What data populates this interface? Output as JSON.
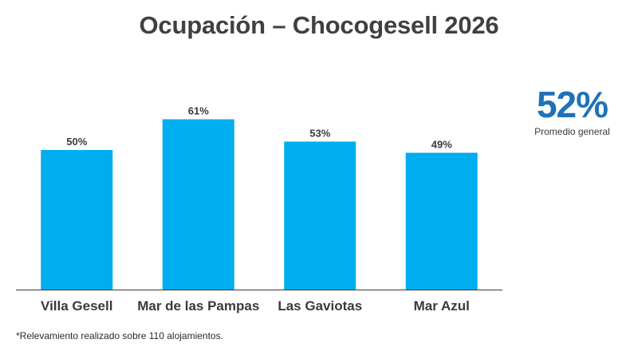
{
  "title": "Ocupación – Chocogesell 2026",
  "kpi": {
    "value": "52%",
    "label": "Promedio general"
  },
  "footnote": "*Relevamiento realizado sobre 110 alojamientos.",
  "colors": {
    "bar": "#00adef",
    "kpi": "#1f72b8",
    "axis": "#3a3a3a"
  },
  "chart_data": {
    "type": "bar",
    "categories": [
      "Villa Gesell",
      "Mar de las Pampas",
      "Las Gaviotas",
      "Mar Azul"
    ],
    "values": [
      50,
      61,
      53,
      49
    ],
    "value_labels": [
      "50%",
      "61%",
      "53%",
      "49%"
    ],
    "title": "Ocupación – Chocogesell 2026",
    "xlabel": "",
    "ylabel": "",
    "ylim": [
      0,
      100
    ],
    "grid": false,
    "legend": "none"
  }
}
